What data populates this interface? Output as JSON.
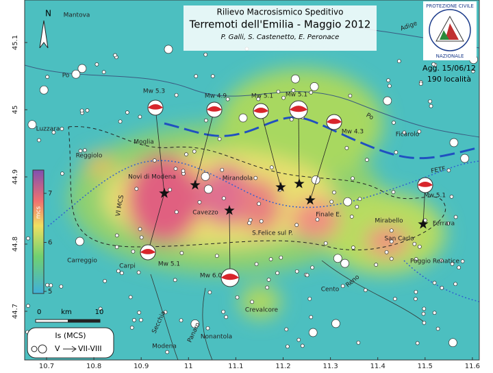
{
  "header": {
    "title": "Rilievo Macrosismico Speditivo",
    "subtitle": "Terremoti dell'Emilia - Maggio 2012",
    "authors": "P. Galli, S. Castenetto, E. Peronace",
    "update": "Agg. 15/06/12",
    "count": "190 località"
  },
  "logo": {
    "top": "PROTEZIONE CIVILE",
    "bottom": "NAZIONALE"
  },
  "north": "N",
  "axes": {
    "x_ticks": [
      10.7,
      10.8,
      10.9,
      11,
      11.1,
      11.2,
      11.3,
      11.4,
      11.5,
      11.6
    ],
    "y_ticks": [
      44.7,
      44.8,
      44.9,
      45,
      45.1
    ]
  },
  "colorbar": {
    "label": "mcs",
    "ticks": [
      5,
      6,
      7
    ]
  },
  "scale_bar": {
    "start": "0",
    "unit": "km",
    "end": "10"
  },
  "legend": {
    "title": "Is (MCS)",
    "from": "V",
    "to": "VII-VIII"
  },
  "events": [
    "Mw 5.3",
    "Mw 4.9",
    "Mw 5.1",
    "Mw 5.1",
    "Mw 4.3",
    "Mw 5.1",
    "Mw 5.1",
    "Mw 6.0"
  ],
  "places": [
    "Mantova",
    "Adige",
    "Po",
    "Po",
    "Luzzara",
    "Reggiolo",
    "Moglia",
    "Novi di Modena",
    "Mirandola",
    "Cavezzo",
    "S.Felice sul P.",
    "Finale E.",
    "Mirabello",
    "San Carlo",
    "Poggio Renatice",
    "Ferrara",
    "Ficarolo",
    "Carreggio",
    "Carpi",
    "Cento",
    "Crevalcore",
    "Nonantola",
    "Modena",
    "Secchia",
    "Panaro",
    "Reno",
    "FETF",
    "VI MCS"
  ]
}
